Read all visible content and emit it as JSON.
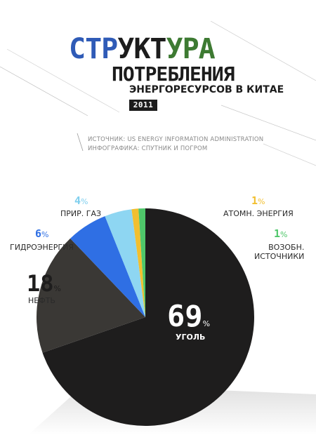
{
  "header": {
    "title_segments": [
      {
        "text": "СТР"
      },
      {
        "text": "УКТ"
      },
      {
        "text": "УРА"
      }
    ],
    "title_line2": "ПОТРЕБЛЕНИЯ",
    "title_line3": "ЭНЕРГОРЕСУРСОВ В КИТАЕ",
    "year": "2011"
  },
  "credits": {
    "source": "ИСТОЧНИК: US ENERGY INFORMATION ADMINISTRATION",
    "graphics": "ИНФОГРАФИКА: СПУТНИК И ПОГРОМ"
  },
  "colors": {
    "title_blue": "#2f5bb7",
    "title_dark": "#1c1c1c",
    "title_green": "#3d7a32"
  },
  "chart_data": {
    "type": "pie",
    "unit": "%",
    "slices": [
      {
        "label": "УГОЛЬ",
        "value": 69,
        "pct_text": "69",
        "color": "#1e1d1d",
        "pct_color": "#ffffff"
      },
      {
        "label": "НЕФТЬ",
        "value": 18,
        "pct_text": "18",
        "color": "#3a3835",
        "pct_color": "#1e1d1d"
      },
      {
        "label": "ГИДРОЭНЕРГИЯ",
        "value": 6,
        "pct_text": "6",
        "color": "#2f6fe4",
        "pct_color": "#2f6fe4"
      },
      {
        "label": "ПРИР. ГАЗ",
        "value": 4,
        "pct_text": "4",
        "color": "#8ed6f2",
        "pct_color": "#7fcfee"
      },
      {
        "label": "АТОМН. ЭНЕРГИЯ",
        "value": 1,
        "pct_text": "1",
        "color": "#f2bf2f",
        "pct_color": "#f2bf2f"
      },
      {
        "label": "ВОЗОБН. ИСТОЧНИКИ",
        "label_lines": [
          "ВОЗОБН.",
          "ИСТОЧНИКИ"
        ],
        "value": 1,
        "pct_text": "1",
        "color": "#4fc76a",
        "pct_color": "#4fc76a"
      }
    ]
  }
}
